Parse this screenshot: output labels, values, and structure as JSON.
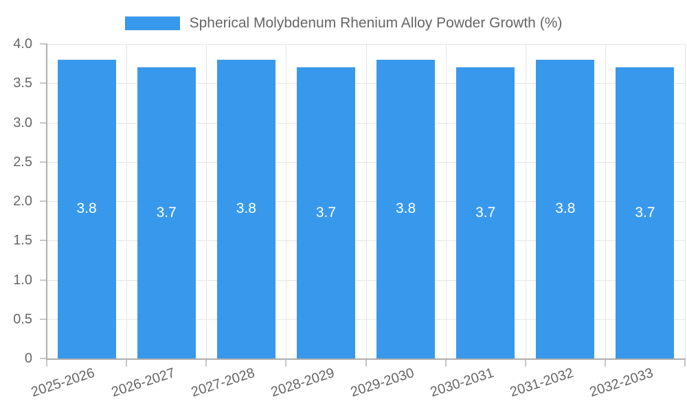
{
  "legend": {
    "label": "Spherical Molybdenum Rhenium Alloy Powder Growth (%)"
  },
  "colors": {
    "bar": "#3899EC",
    "grid": "#E5E5E5",
    "axis_line": "#ADADAD",
    "tick_mark": "#C6C6C6",
    "tick_text": "#666666",
    "bar_label_text": "#FFFFFF",
    "background": "#FFFFFF"
  },
  "chart_data": {
    "type": "bar",
    "title": "",
    "series_name": "Spherical Molybdenum Rhenium Alloy Powder Growth (%)",
    "categories": [
      "2025-2026",
      "2026-2027",
      "2027-2028",
      "2028-2029",
      "2029-2030",
      "2030-2031",
      "2031-2032",
      "2032-2033"
    ],
    "values": [
      3.8,
      3.7,
      3.8,
      3.7,
      3.8,
      3.7,
      3.8,
      3.7
    ],
    "bar_value_labels": [
      "3.8",
      "3.7",
      "3.8",
      "3.7",
      "3.8",
      "3.7",
      "3.8",
      "3.7"
    ],
    "xlabel": "",
    "ylabel": "",
    "ylim": [
      0,
      4.0
    ],
    "ytick_step": 0.5,
    "ytick_labels": [
      "0",
      "0.5",
      "1.0",
      "1.5",
      "2.0",
      "2.5",
      "3.0",
      "3.5",
      "4.0"
    ],
    "grid": true,
    "legend_position": "top"
  }
}
